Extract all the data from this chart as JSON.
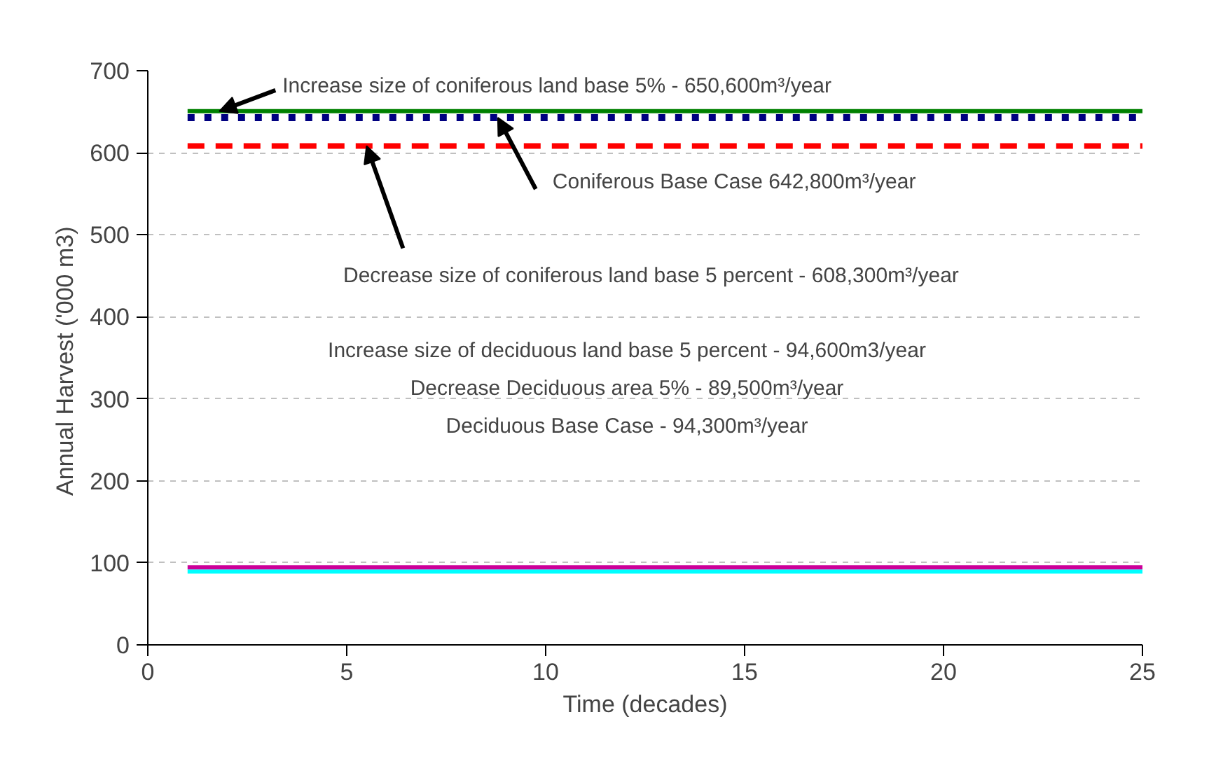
{
  "chart_data": {
    "type": "line",
    "xlabel": "Time (decades)",
    "ylabel": "Annual Harvest  ('000 m3)",
    "x": [
      1,
      25
    ],
    "xlim": [
      0,
      25
    ],
    "ylim": [
      0,
      700
    ],
    "xticks": [
      0,
      5,
      10,
      15,
      20,
      25
    ],
    "yticks": [
      0,
      100,
      200,
      300,
      400,
      500,
      600,
      700
    ],
    "grid": "y",
    "series": [
      {
        "color": "#008000",
        "line_style": "solid",
        "values": [
          650.6,
          650.6
        ]
      },
      {
        "color": "#000080",
        "line_style": "dotted",
        "values": [
          642.8,
          642.8
        ]
      },
      {
        "color": "#ff0000",
        "line_style": "dashed",
        "values": [
          608.3,
          608.3
        ]
      },
      {
        "color": "#00ffff",
        "line_style": "solid",
        "values": [
          89.5,
          89.5
        ]
      },
      {
        "color": "#cc0099",
        "line_style": "solid",
        "values": [
          94.6,
          94.6
        ]
      }
    ],
    "annotations": [
      {
        "text": "Increase size of coniferous land base 5% - 650,600m³/year",
        "x": 1.8,
        "y": 650.6
      },
      {
        "text": "Coniferous Base Case 642,800m³/year",
        "x": 8.8,
        "y": 642.8
      },
      {
        "text": "Decrease size of coniferous land base 5 percent - 608,300m³/year",
        "x": 5.5,
        "y": 608.3
      },
      "Increase size of deciduous land base 5 percent - 94,600m3/year",
      "Decrease Deciduous area 5% - 89,500m³/year",
      "Deciduous Base Case - 94,300m³/year"
    ]
  }
}
